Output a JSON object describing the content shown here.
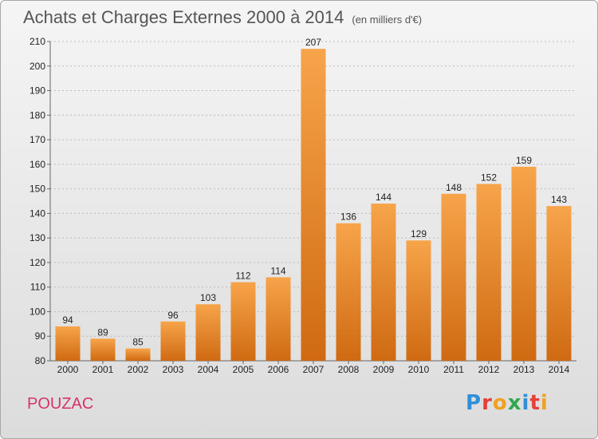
{
  "header": {
    "title": "Achats et Charges Externes 2000 à 2014",
    "unit": "(en milliers d'€)"
  },
  "footer": {
    "place": "POUZAC",
    "brand": "Proxiti"
  },
  "colors": {
    "bar_top": "#f7a44a",
    "bar_bottom": "#cf6a12",
    "grid": "#bbbbbb",
    "place": "#d6336c"
  },
  "chart_data": {
    "type": "bar",
    "title": "Achats et Charges Externes 2000 à 2014",
    "subtitle": "(en milliers d'€)",
    "xlabel": "",
    "ylabel": "",
    "categories": [
      "2000",
      "2001",
      "2002",
      "2003",
      "2004",
      "2005",
      "2006",
      "2007",
      "2008",
      "2009",
      "2010",
      "2011",
      "2012",
      "2013",
      "2014"
    ],
    "values": [
      94,
      89,
      85,
      96,
      103,
      112,
      114,
      207,
      136,
      144,
      129,
      148,
      152,
      159,
      143
    ],
    "ylim": [
      80,
      210
    ],
    "yticks": [
      80,
      90,
      100,
      110,
      120,
      130,
      140,
      150,
      160,
      170,
      180,
      190,
      200,
      210
    ],
    "grid": true,
    "data_labels": true
  }
}
